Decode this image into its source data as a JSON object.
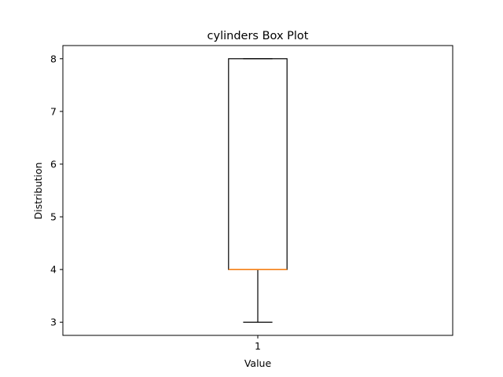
{
  "chart_data": {
    "type": "box",
    "title": "cylinders Box Plot",
    "xlabel": "Value",
    "ylabel": "Distribution",
    "categories": [
      "1"
    ],
    "ylim": [
      2.75,
      8.25
    ],
    "yticks": [
      3,
      4,
      5,
      6,
      7,
      8
    ],
    "grid": false,
    "boxes": [
      {
        "label": "1",
        "whisker_low": 3,
        "q1": 4,
        "median": 4,
        "q3": 8,
        "whisker_high": 8
      }
    ],
    "colors": {
      "box": "#000000",
      "median": "#ff7f0e",
      "whisker": "#000000"
    }
  }
}
